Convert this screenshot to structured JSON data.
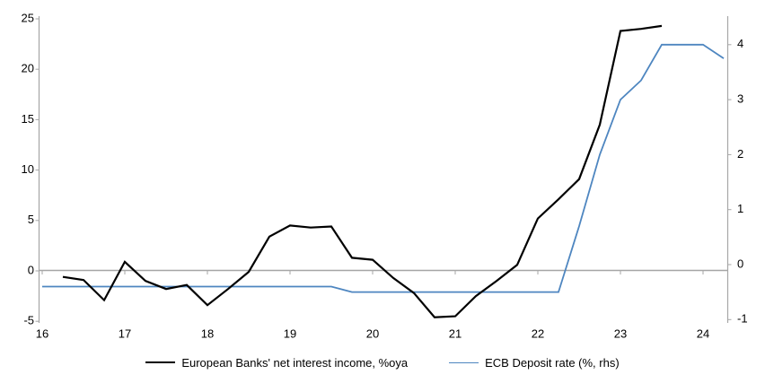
{
  "chart_data": {
    "type": "line",
    "title": "",
    "x_axis": {
      "ticks": [
        16,
        17,
        18,
        19,
        20,
        21,
        22,
        23,
        24
      ],
      "range": [
        16,
        24.3
      ]
    },
    "left_axis": {
      "ticks": [
        25,
        20,
        15,
        10,
        5,
        0,
        -5
      ],
      "range": [
        -5.2,
        25.3
      ]
    },
    "right_axis": {
      "ticks": [
        4,
        3,
        2,
        1,
        0,
        -1
      ],
      "range": [
        -1.07,
        4.53
      ]
    },
    "grid": "zero-line-only",
    "legend_position": "bottom",
    "axis_color": "#a6a6a6",
    "label_color": "#000000",
    "series": [
      {
        "name": "European Banks' net interest income, %oya",
        "axis": "left",
        "color": "#000000",
        "stroke_width": 2.2,
        "points": [
          [
            16.25,
            -0.6
          ],
          [
            16.5,
            -0.9
          ],
          [
            16.75,
            -2.9
          ],
          [
            17.0,
            0.9
          ],
          [
            17.25,
            -1.0
          ],
          [
            17.5,
            -1.8
          ],
          [
            17.75,
            -1.4
          ],
          [
            18.0,
            -3.4
          ],
          [
            18.25,
            -1.8
          ],
          [
            18.5,
            -0.1
          ],
          [
            18.75,
            3.4
          ],
          [
            19.0,
            4.5
          ],
          [
            19.25,
            4.3
          ],
          [
            19.5,
            4.4
          ],
          [
            19.75,
            1.3
          ],
          [
            20.0,
            1.1
          ],
          [
            20.25,
            -0.7
          ],
          [
            20.5,
            -2.2
          ],
          [
            20.75,
            -4.6
          ],
          [
            21.0,
            -4.5
          ],
          [
            21.25,
            -2.5
          ],
          [
            21.5,
            -1.0
          ],
          [
            21.75,
            0.6
          ],
          [
            22.0,
            5.2
          ],
          [
            22.25,
            7.1
          ],
          [
            22.5,
            9.1
          ],
          [
            22.75,
            14.5
          ],
          [
            23.0,
            23.8
          ],
          [
            23.25,
            24.0
          ],
          [
            23.5,
            24.3
          ]
        ]
      },
      {
        "name": "ECB Deposit rate (%, rhs)",
        "axis": "right",
        "color": "#4e86c0",
        "stroke_width": 1.8,
        "points": [
          [
            16.0,
            -0.4
          ],
          [
            16.25,
            -0.4
          ],
          [
            16.5,
            -0.4
          ],
          [
            16.75,
            -0.4
          ],
          [
            17.0,
            -0.4
          ],
          [
            17.25,
            -0.4
          ],
          [
            17.5,
            -0.4
          ],
          [
            17.75,
            -0.4
          ],
          [
            18.0,
            -0.4
          ],
          [
            18.25,
            -0.4
          ],
          [
            18.5,
            -0.4
          ],
          [
            18.75,
            -0.4
          ],
          [
            19.0,
            -0.4
          ],
          [
            19.25,
            -0.4
          ],
          [
            19.5,
            -0.4
          ],
          [
            19.75,
            -0.5
          ],
          [
            20.0,
            -0.5
          ],
          [
            20.25,
            -0.5
          ],
          [
            20.5,
            -0.5
          ],
          [
            20.75,
            -0.5
          ],
          [
            21.0,
            -0.5
          ],
          [
            21.25,
            -0.5
          ],
          [
            21.5,
            -0.5
          ],
          [
            21.75,
            -0.5
          ],
          [
            22.0,
            -0.5
          ],
          [
            22.25,
            -0.5
          ],
          [
            22.5,
            0.7
          ],
          [
            22.75,
            2.0
          ],
          [
            23.0,
            3.0
          ],
          [
            23.25,
            3.35
          ],
          [
            23.5,
            4.0
          ],
          [
            23.75,
            4.0
          ],
          [
            24.0,
            4.0
          ],
          [
            24.25,
            3.75
          ]
        ]
      }
    ]
  }
}
